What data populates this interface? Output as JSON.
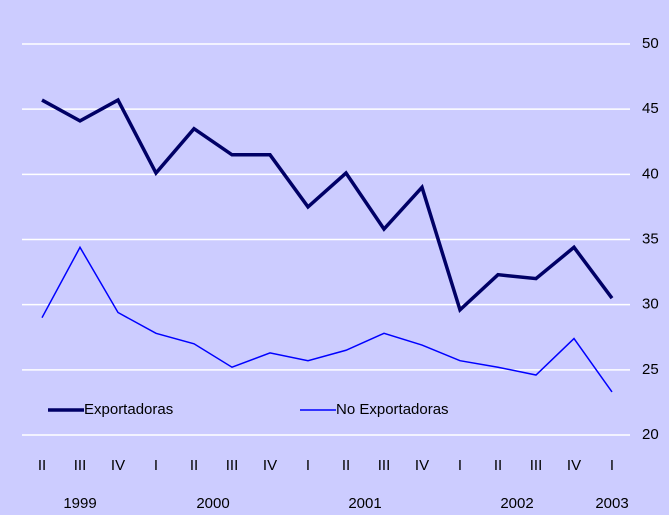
{
  "chart_data": {
    "type": "line",
    "categories": [
      "II",
      "III",
      "IV",
      "I",
      "II",
      "III",
      "IV",
      "I",
      "II",
      "III",
      "IV",
      "I",
      "II",
      "III",
      "IV",
      "I"
    ],
    "category_years": [
      null,
      "1999",
      null,
      null,
      "2000",
      null,
      null,
      null,
      "2001",
      null,
      null,
      null,
      "2002",
      null,
      null,
      "2003"
    ],
    "series": [
      {
        "name": "Exportadoras",
        "color": "#000066",
        "values": [
          45.7,
          44.1,
          45.7,
          40.1,
          43.5,
          41.5,
          41.5,
          37.5,
          40.1,
          35.8,
          39.0,
          29.6,
          32.3,
          32.0,
          34.4,
          30.5
        ]
      },
      {
        "name": "No Exportadoras",
        "color": "#0000ff",
        "values": [
          29.0,
          34.4,
          29.4,
          27.8,
          27.0,
          25.2,
          26.3,
          25.7,
          26.5,
          27.8,
          26.9,
          25.7,
          25.2,
          24.6,
          27.4,
          23.3
        ]
      }
    ],
    "ylim": [
      20,
      50
    ],
    "yticks": [
      20,
      25,
      30,
      35,
      40,
      45,
      50
    ],
    "grid": true,
    "legend": "bottom-left"
  }
}
